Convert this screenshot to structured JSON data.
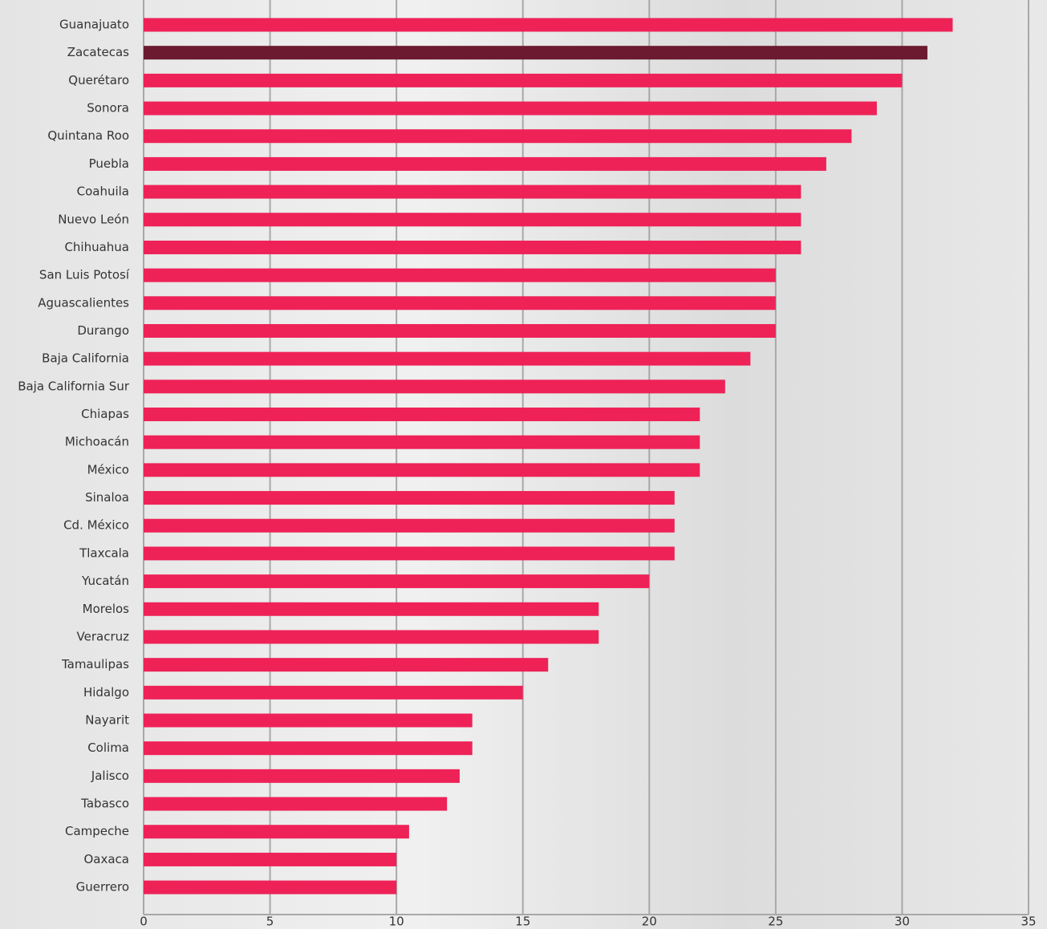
{
  "chart_data": {
    "type": "bar",
    "orientation": "horizontal",
    "categories": [
      "Guanajuato",
      "Zacatecas",
      "Querétaro",
      "Sonora",
      "Quintana Roo",
      "Puebla",
      "Coahuila",
      "Nuevo León",
      "Chihuahua",
      "San Luis Potosí",
      "Aguascalientes",
      "Durango",
      "Baja California",
      "Baja California Sur",
      "Chiapas",
      "Michoacán",
      "México",
      "Sinaloa",
      "Cd. México",
      "Tlaxcala",
      "Yucatán",
      "Morelos",
      "Veracruz",
      "Tamaulipas",
      "Hidalgo",
      "Nayarit",
      "Colima",
      "Jalisco",
      "Tabasco",
      "Campeche",
      "Oaxaca",
      "Guerrero"
    ],
    "values": [
      32,
      31,
      30,
      29,
      28,
      27,
      26,
      26,
      26,
      25,
      25,
      25,
      24,
      23,
      22,
      22,
      22,
      21,
      21,
      21,
      20,
      18,
      18,
      16,
      15,
      13,
      13,
      12.5,
      12,
      10.5,
      10,
      10
    ],
    "colors": [
      "#ee2257",
      "#6b1a30",
      "#ee2257",
      "#ee2257",
      "#ee2257",
      "#ee2257",
      "#ee2257",
      "#ee2257",
      "#ee2257",
      "#ee2257",
      "#ee2257",
      "#ee2257",
      "#ee2257",
      "#ee2257",
      "#ee2257",
      "#ee2257",
      "#ee2257",
      "#ee2257",
      "#ee2257",
      "#ee2257",
      "#ee2257",
      "#ee2257",
      "#ee2257",
      "#ee2257",
      "#ee2257",
      "#ee2257",
      "#ee2257",
      "#ee2257",
      "#ee2257",
      "#ee2257",
      "#ee2257",
      "#ee2257"
    ],
    "xlim": [
      0,
      35
    ],
    "xticks": [
      0,
      5,
      10,
      15,
      20,
      25,
      30,
      35
    ],
    "grid": true
  }
}
